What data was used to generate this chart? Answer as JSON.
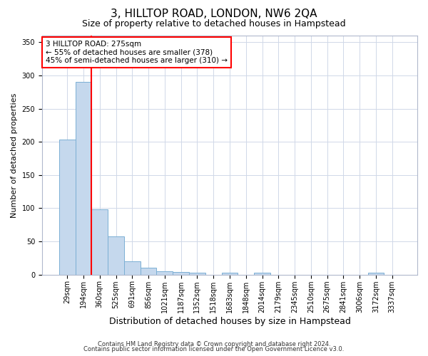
{
  "title": "3, HILLTOP ROAD, LONDON, NW6 2QA",
  "subtitle": "Size of property relative to detached houses in Hampstead",
  "xlabel": "Distribution of detached houses by size in Hampstead",
  "ylabel": "Number of detached properties",
  "categories": [
    "29sqm",
    "194sqm",
    "360sqm",
    "525sqm",
    "691sqm",
    "856sqm",
    "1021sqm",
    "1187sqm",
    "1352sqm",
    "1518sqm",
    "1683sqm",
    "1848sqm",
    "2014sqm",
    "2179sqm",
    "2345sqm",
    "2510sqm",
    "2675sqm",
    "2841sqm",
    "3006sqm",
    "3172sqm",
    "3337sqm"
  ],
  "values": [
    203,
    290,
    98,
    58,
    20,
    10,
    5,
    4,
    3,
    0,
    3,
    0,
    3,
    0,
    0,
    0,
    0,
    0,
    0,
    3,
    0
  ],
  "bar_color": "#c5d8ed",
  "bar_edge_color": "#7bafd4",
  "red_line_x": 1.5,
  "ylim": [
    0,
    360
  ],
  "yticks": [
    0,
    50,
    100,
    150,
    200,
    250,
    300,
    350
  ],
  "annotation_text": "3 HILLTOP ROAD: 275sqm\n← 55% of detached houses are smaller (378)\n45% of semi-detached houses are larger (310) →",
  "footer_line1": "Contains HM Land Registry data © Crown copyright and database right 2024.",
  "footer_line2": "Contains public sector information licensed under the Open Government Licence v3.0.",
  "background_color": "#ffffff",
  "grid_color": "#d0d8e8",
  "title_fontsize": 11,
  "subtitle_fontsize": 9,
  "xlabel_fontsize": 9,
  "ylabel_fontsize": 8,
  "tick_fontsize": 7,
  "annotation_fontsize": 7.5,
  "footer_fontsize": 6
}
